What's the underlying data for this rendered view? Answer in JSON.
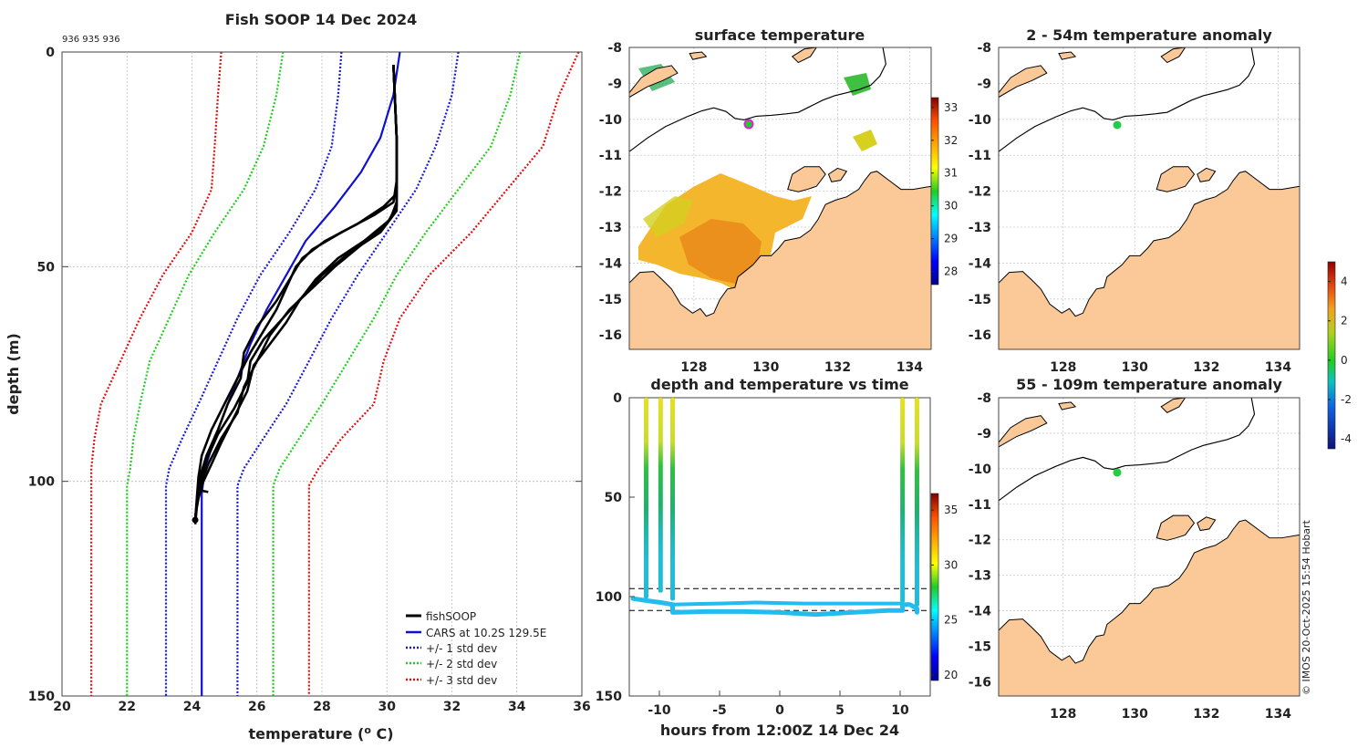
{
  "chart_data": [
    {
      "type": "line",
      "title": "Fish SOOP 14 Dec 2024",
      "subtitle": "936 935 936",
      "xlabel": "temperature (",
      "xlabel_sup": "o",
      "xlabel_end": " C)",
      "ylabel": "depth (m)",
      "xlim": [
        20,
        36
      ],
      "ylim": [
        0,
        150
      ],
      "y_reversed": true,
      "xticks": [
        "20",
        "22",
        "24",
        "26",
        "28",
        "30",
        "32",
        "34",
        "36"
      ],
      "yticks": [
        "0",
        "50",
        "100",
        "150"
      ],
      "grid": true,
      "legend_position": "bottom-right",
      "legend": [
        "fishSOOP",
        "CARS at 10.2S 129.5E",
        "+/- 1 std dev",
        "+/- 2 std dev",
        "+/- 3 std dev"
      ],
      "colors": {
        "fishSOOP": "#000000",
        "cars": "#1010d0",
        "sd1": "#1818d8",
        "sd2": "#22cc22",
        "sd3": "#e01010"
      },
      "series": [
        {
          "name": "fishSOOP",
          "casts": [
            [
              [
                30.2,
                3
              ],
              [
                30.3,
                20
              ],
              [
                30.3,
                30
              ],
              [
                30.2,
                35
              ],
              [
                29.6,
                38
              ],
              [
                28.6,
                42
              ],
              [
                27.7,
                46
              ],
              [
                27.2,
                50
              ],
              [
                26.9,
                55
              ],
              [
                26.6,
                60
              ],
              [
                26.2,
                65
              ],
              [
                25.8,
                70
              ],
              [
                25.4,
                76
              ],
              [
                25.0,
                82
              ],
              [
                24.6,
                88
              ],
              [
                24.3,
                94
              ],
              [
                24.2,
                99
              ],
              [
                24.15,
                104
              ],
              [
                24.1,
                109
              ]
            ],
            [
              [
                30.2,
                3
              ],
              [
                30.3,
                20
              ],
              [
                30.3,
                33
              ],
              [
                29.9,
                36
              ],
              [
                29.1,
                40
              ],
              [
                28.1,
                44
              ],
              [
                27.4,
                48
              ],
              [
                27.0,
                53
              ],
              [
                26.6,
                58
              ],
              [
                26.0,
                64
              ],
              [
                25.6,
                70
              ],
              [
                25.5,
                76
              ],
              [
                25.1,
                82
              ],
              [
                24.8,
                88
              ],
              [
                24.45,
                94
              ],
              [
                24.2,
                100
              ],
              [
                24.15,
                105
              ],
              [
                24.1,
                109
              ]
            ],
            [
              [
                30.2,
                3
              ],
              [
                30.3,
                20
              ],
              [
                30.3,
                35
              ],
              [
                30.1,
                39
              ],
              [
                29.3,
                44
              ],
              [
                28.5,
                48
              ],
              [
                27.8,
                53
              ],
              [
                27.3,
                58
              ],
              [
                26.9,
                63
              ],
              [
                26.4,
                68
              ],
              [
                25.9,
                73
              ],
              [
                25.7,
                79
              ],
              [
                25.3,
                85
              ],
              [
                24.9,
                91
              ],
              [
                24.6,
                96
              ],
              [
                24.35,
                100
              ],
              [
                24.2,
                104
              ],
              [
                24.1,
                108
              ]
            ],
            [
              [
                30.2,
                3
              ],
              [
                30.3,
                20
              ],
              [
                30.3,
                36
              ],
              [
                30.0,
                40
              ],
              [
                29.2,
                45
              ],
              [
                28.4,
                50
              ],
              [
                27.7,
                55
              ],
              [
                27.0,
                60
              ],
              [
                26.4,
                66
              ],
              [
                26.0,
                72
              ],
              [
                25.6,
                78
              ],
              [
                25.4,
                84
              ],
              [
                24.9,
                90
              ],
              [
                24.5,
                96
              ],
              [
                24.25,
                101
              ],
              [
                24.15,
                106
              ],
              [
                24.1,
                110
              ]
            ],
            [
              [
                30.2,
                3
              ],
              [
                30.3,
                20
              ],
              [
                30.3,
                37
              ],
              [
                29.8,
                42
              ],
              [
                28.8,
                47
              ],
              [
                28.0,
                52
              ],
              [
                27.4,
                57
              ],
              [
                26.8,
                62
              ],
              [
                26.2,
                67
              ],
              [
                25.8,
                72
              ],
              [
                25.7,
                77
              ],
              [
                25.3,
                83
              ],
              [
                24.8,
                89
              ],
              [
                24.45,
                95
              ],
              [
                24.3,
                99
              ],
              [
                24.2,
                102
              ],
              [
                24.5,
                102.5
              ]
            ]
          ]
        },
        {
          "name": "CARS at 10.2S 129.5E",
          "points": [
            [
              30.4,
              0
            ],
            [
              30.2,
              10
            ],
            [
              29.8,
              20
            ],
            [
              29.2,
              28
            ],
            [
              28.4,
              36
            ],
            [
              27.5,
              44
            ],
            [
              26.9,
              52
            ],
            [
              26.3,
              60
            ],
            [
              25.8,
              68
            ],
            [
              25.4,
              76
            ],
            [
              25.0,
              84
            ],
            [
              24.7,
              90
            ],
            [
              24.4,
              97
            ],
            [
              24.3,
              103
            ],
            [
              24.3,
              110
            ],
            [
              24.3,
              150
            ]
          ]
        },
        {
          "name": "+/- 1 std dev",
          "lower": [
            [
              28.6,
              0
            ],
            [
              28.5,
              10
            ],
            [
              28.3,
              22
            ],
            [
              27.8,
              32
            ],
            [
              27.0,
              42
            ],
            [
              26.1,
              52
            ],
            [
              25.4,
              62
            ],
            [
              24.8,
              72
            ],
            [
              24.2,
              82
            ],
            [
              23.7,
              90
            ],
            [
              23.3,
              97
            ],
            [
              23.2,
              101
            ],
            [
              23.2,
              150
            ]
          ],
          "upper": [
            [
              32.2,
              0
            ],
            [
              32.0,
              10
            ],
            [
              31.5,
              22
            ],
            [
              30.9,
              32
            ],
            [
              30.0,
              42
            ],
            [
              29.1,
              52
            ],
            [
              28.3,
              62
            ],
            [
              27.6,
              72
            ],
            [
              26.9,
              82
            ],
            [
              26.2,
              90
            ],
            [
              25.6,
              97
            ],
            [
              25.4,
              101
            ],
            [
              25.4,
              150
            ]
          ]
        },
        {
          "name": "+/- 2 std dev",
          "lower": [
            [
              26.8,
              0
            ],
            [
              26.6,
              10
            ],
            [
              26.2,
              22
            ],
            [
              25.6,
              32
            ],
            [
              24.7,
              42
            ],
            [
              23.9,
              52
            ],
            [
              23.3,
              62
            ],
            [
              22.7,
              72
            ],
            [
              22.4,
              82
            ],
            [
              22.2,
              90
            ],
            [
              22.1,
              97
            ],
            [
              22.0,
              101
            ],
            [
              22.0,
              150
            ]
          ],
          "upper": [
            [
              34.1,
              0
            ],
            [
              33.8,
              10
            ],
            [
              33.2,
              22
            ],
            [
              32.2,
              32
            ],
            [
              31.2,
              42
            ],
            [
              30.3,
              52
            ],
            [
              29.6,
              62
            ],
            [
              28.8,
              72
            ],
            [
              28.0,
              82
            ],
            [
              27.3,
              90
            ],
            [
              26.7,
              97
            ],
            [
              26.5,
              101
            ],
            [
              26.5,
              150
            ]
          ]
        },
        {
          "name": "+/- 3 std dev",
          "lower": [
            [
              24.9,
              0
            ],
            [
              24.8,
              10
            ],
            [
              24.7,
              22
            ],
            [
              24.6,
              32
            ],
            [
              24.0,
              42
            ],
            [
              23.1,
              52
            ],
            [
              22.4,
              62
            ],
            [
              21.8,
              72
            ],
            [
              21.2,
              82
            ],
            [
              21.0,
              90
            ],
            [
              20.9,
              97
            ],
            [
              20.9,
              101
            ],
            [
              20.9,
              150
            ]
          ],
          "upper": [
            [
              35.9,
              0
            ],
            [
              35.3,
              10
            ],
            [
              34.8,
              22
            ],
            [
              33.7,
              32
            ],
            [
              32.6,
              42
            ],
            [
              31.3,
              52
            ],
            [
              30.4,
              62
            ],
            [
              29.9,
              72
            ],
            [
              29.6,
              82
            ],
            [
              28.6,
              90
            ],
            [
              27.9,
              97
            ],
            [
              27.6,
              101
            ],
            [
              27.6,
              150
            ]
          ]
        }
      ]
    },
    {
      "type": "heatmap",
      "title": "surface temperature",
      "xticks": [
        "128",
        "130",
        "132",
        "134"
      ],
      "yticks": [
        "-8",
        "-9",
        "-10",
        "-11",
        "-12",
        "-13",
        "-14",
        "-15",
        "-16"
      ],
      "xlim": [
        126.2,
        134.6
      ],
      "ylim": [
        -16.4,
        -8
      ],
      "colorbar": {
        "ticks": [
          "28",
          "29",
          "30",
          "31",
          "32",
          "33"
        ],
        "range": [
          27.6,
          33.3
        ]
      },
      "marker": {
        "lon": 129.5,
        "lat": -10.2
      }
    },
    {
      "type": "heatmap",
      "title": "2 - 54m temperature anomaly",
      "xticks": [
        "128",
        "130",
        "132",
        "134"
      ],
      "yticks": [
        "-8",
        "-9",
        "-10",
        "-11",
        "-12",
        "-13",
        "-14",
        "-15",
        "-16"
      ],
      "xlim": [
        126.2,
        134.6
      ],
      "ylim": [
        -16.4,
        -8
      ],
      "marker": {
        "lon": 129.5,
        "lat": -10.2
      }
    },
    {
      "type": "heatmap",
      "title": "55 - 109m temperature anomaly",
      "xticks": [
        "128",
        "130",
        "132",
        "134"
      ],
      "yticks": [
        "-8",
        "-9",
        "-10",
        "-11",
        "-12",
        "-13",
        "-14",
        "-15",
        "-16"
      ],
      "xlim": [
        126.2,
        134.6
      ],
      "ylim": [
        -16.4,
        -8
      ],
      "marker": {
        "lon": 129.5,
        "lat": -10.2
      }
    },
    {
      "type": "scatter",
      "title": "depth and temperature vs time",
      "xlabel": "hours from 12:00Z 14 Dec 24",
      "xlim": [
        -12.5,
        12.5
      ],
      "ylim": [
        0,
        150
      ],
      "y_reversed": true,
      "xticks": [
        "-10",
        "-5",
        "0",
        "5",
        "10"
      ],
      "yticks": [
        "0",
        "50",
        "100",
        "150"
      ],
      "colorbar": {
        "ticks": [
          "20",
          "25",
          "30",
          "35"
        ],
        "range": [
          19.5,
          36.5
        ]
      },
      "dashed_reference_depths": [
        96,
        107
      ]
    }
  ],
  "anomaly_colorbar": {
    "ticks": [
      "4",
      "2",
      "0",
      "-2",
      "-4"
    ],
    "range": [
      -4.5,
      5
    ]
  },
  "credit": "© IMOS 20-Oct-2025 15:54 Hobart"
}
